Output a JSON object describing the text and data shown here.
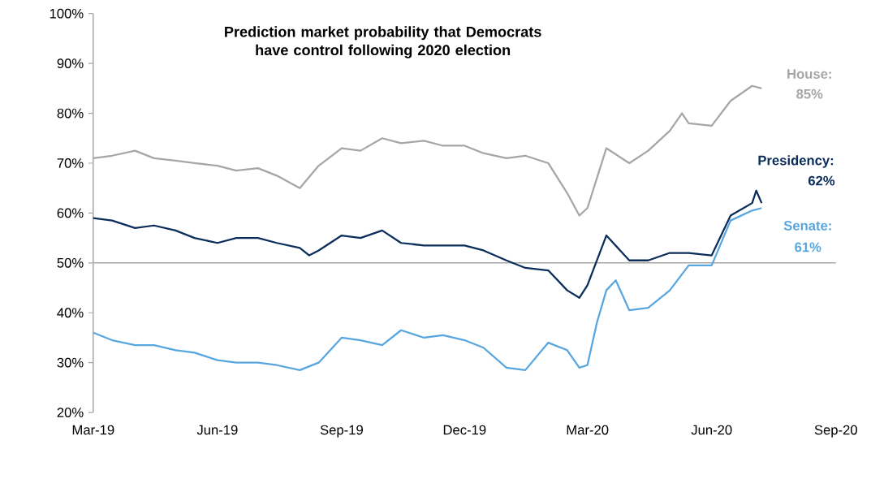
{
  "chart_data": {
    "type": "line",
    "title": "Prediction market probability that Democrats have control following 2020 election",
    "xlim": [
      "2019-03-01",
      "2020-09-01"
    ],
    "xticks": [
      {
        "value": "2019-03-01",
        "label": "Mar-19"
      },
      {
        "value": "2019-06-01",
        "label": "Jun-19"
      },
      {
        "value": "2019-09-01",
        "label": "Sep-19"
      },
      {
        "value": "2019-12-01",
        "label": "Dec-19"
      },
      {
        "value": "2020-03-01",
        "label": "Mar-20"
      },
      {
        "value": "2020-06-01",
        "label": "Jun-20"
      },
      {
        "value": "2020-09-01",
        "label": "Sep-20"
      }
    ],
    "ylim": [
      20,
      100
    ],
    "yticks": [
      {
        "value": 20,
        "label": "20%"
      },
      {
        "value": 30,
        "label": "30%"
      },
      {
        "value": 40,
        "label": "40%"
      },
      {
        "value": 50,
        "label": "50%"
      },
      {
        "value": 60,
        "label": "60%"
      },
      {
        "value": 70,
        "label": "70%"
      },
      {
        "value": 80,
        "label": "80%"
      },
      {
        "value": 90,
        "label": "90%"
      },
      {
        "value": 100,
        "label": "100%"
      }
    ],
    "ref_lines": [
      {
        "axis": "y",
        "value": 50,
        "color": "#a6a6a6"
      }
    ],
    "series": [
      {
        "name": "House:",
        "color": "#a6a6a6",
        "x": [
          "2019-03-01",
          "2019-03-15",
          "2019-04-01",
          "2019-04-15",
          "2019-05-01",
          "2019-05-15",
          "2019-06-01",
          "2019-06-15",
          "2019-07-01",
          "2019-07-15",
          "2019-08-01",
          "2019-08-15",
          "2019-09-01",
          "2019-09-15",
          "2019-10-01",
          "2019-10-15",
          "2019-11-01",
          "2019-11-15",
          "2019-12-01",
          "2019-12-15",
          "2020-01-01",
          "2020-01-15",
          "2020-02-01",
          "2020-02-15",
          "2020-02-24",
          "2020-03-01",
          "2020-03-15",
          "2020-04-01",
          "2020-04-15",
          "2020-05-01",
          "2020-05-10",
          "2020-05-15",
          "2020-06-01",
          "2020-06-15",
          "2020-07-01",
          "2020-07-08"
        ],
        "values": [
          71,
          71.5,
          72.5,
          71,
          70.5,
          70,
          69.5,
          68.5,
          69,
          67.5,
          65,
          69.5,
          73,
          72.5,
          75,
          74,
          74.5,
          73.5,
          73.5,
          72,
          71,
          71.5,
          70,
          64,
          59.5,
          61,
          73,
          70,
          72.5,
          76.5,
          80,
          78,
          77.5,
          82.5,
          85.5,
          85
        ]
      },
      {
        "name": "Presidency:",
        "color": "#0b2d5b",
        "x": [
          "2019-03-01",
          "2019-03-15",
          "2019-04-01",
          "2019-04-15",
          "2019-05-01",
          "2019-05-15",
          "2019-06-01",
          "2019-06-15",
          "2019-07-01",
          "2019-07-15",
          "2019-08-01",
          "2019-08-08",
          "2019-08-15",
          "2019-09-01",
          "2019-09-15",
          "2019-10-01",
          "2019-10-15",
          "2019-11-01",
          "2019-11-15",
          "2019-12-01",
          "2019-12-15",
          "2020-01-01",
          "2020-01-15",
          "2020-02-01",
          "2020-02-15",
          "2020-02-24",
          "2020-03-01",
          "2020-03-15",
          "2020-04-01",
          "2020-04-15",
          "2020-05-01",
          "2020-05-15",
          "2020-06-01",
          "2020-06-15",
          "2020-07-01",
          "2020-07-04",
          "2020-07-08"
        ],
        "values": [
          59,
          58.5,
          57,
          57.5,
          56.5,
          55,
          54,
          55,
          55,
          54,
          53,
          51.5,
          52.5,
          55.5,
          55,
          56.5,
          54,
          53.5,
          53.5,
          53.5,
          52.5,
          50.5,
          49,
          48.5,
          44.5,
          43,
          45.5,
          55.5,
          50.5,
          50.5,
          52,
          52,
          51.5,
          59.5,
          62,
          64.5,
          62
        ]
      },
      {
        "name": "Senate:",
        "color": "#58a6e0",
        "x": [
          "2019-03-01",
          "2019-03-15",
          "2019-04-01",
          "2019-04-15",
          "2019-05-01",
          "2019-05-15",
          "2019-06-01",
          "2019-06-15",
          "2019-07-01",
          "2019-07-15",
          "2019-08-01",
          "2019-08-15",
          "2019-09-01",
          "2019-09-15",
          "2019-10-01",
          "2019-10-15",
          "2019-11-01",
          "2019-11-15",
          "2019-12-01",
          "2019-12-15",
          "2020-01-01",
          "2020-01-15",
          "2020-02-01",
          "2020-02-15",
          "2020-02-24",
          "2020-03-01",
          "2020-03-08",
          "2020-03-15",
          "2020-03-22",
          "2020-04-01",
          "2020-04-15",
          "2020-05-01",
          "2020-05-15",
          "2020-06-01",
          "2020-06-15",
          "2020-07-01",
          "2020-07-08"
        ],
        "values": [
          36,
          34.5,
          33.5,
          33.5,
          32.5,
          32,
          30.5,
          30,
          30,
          29.5,
          28.5,
          30,
          35,
          34.5,
          33.5,
          36.5,
          35,
          35.5,
          34.5,
          33,
          29,
          28.5,
          34,
          32.5,
          29,
          29.5,
          38,
          44.5,
          46.5,
          40.5,
          41,
          44.5,
          49.5,
          49.5,
          58.5,
          60.5,
          61
        ]
      }
    ],
    "annotations": [
      "85%",
      "62%",
      "61%"
    ]
  }
}
